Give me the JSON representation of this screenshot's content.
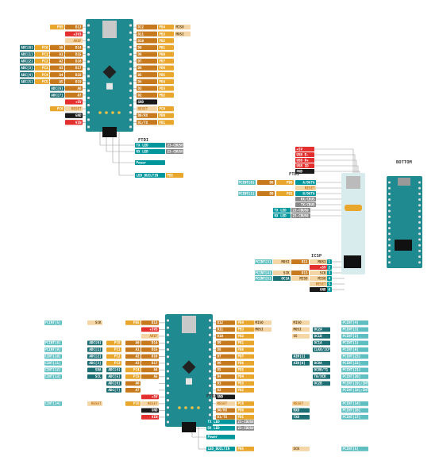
{
  "colors": {
    "teal": "#00979c",
    "dark_teal": "#1e6f74",
    "light_teal": "#5fbfc1",
    "orange": "#e8a72c",
    "dark_orange": "#c67a1d",
    "peach": "#f4d5a6",
    "red": "#e3302e",
    "black": "#1a1a1a",
    "gray": "#888888",
    "board": "#1f8a8f"
  },
  "legend": {
    "ftdi": "FTDI",
    "icsp": "ICSP",
    "bottom": "BOTTOM"
  },
  "top": {
    "left_rows": [
      [
        "D13",
        "PB5"
      ],
      [
        "+3V3"
      ],
      [
        "AREF"
      ],
      [
        "D14",
        "A0",
        "PC0",
        "ADC[0]"
      ],
      [
        "D15",
        "A1",
        "PC1",
        "ADC[1]"
      ],
      [
        "D16",
        "A2",
        "PC2",
        "ADC[2]"
      ],
      [
        "D17",
        "A3",
        "PC3",
        "ADC[3]"
      ],
      [
        "D18",
        "A4",
        "PC4",
        "ADC[4]"
      ],
      [
        "D19",
        "A5",
        "PC5",
        "ADC[5]"
      ],
      [
        "A6",
        "ADC[6]"
      ],
      [
        "A7",
        "ADC[7]"
      ],
      [
        "+5V"
      ],
      [
        "RESET",
        "PC6"
      ],
      [
        "GND"
      ],
      [
        "VIN"
      ]
    ],
    "right_rows": [
      [
        "D12",
        "PB4",
        "MISO"
      ],
      [
        "D11",
        "PB3",
        "MOSI"
      ],
      [
        "D10",
        "PB2"
      ],
      [
        "D9",
        "PB1"
      ],
      [
        "D8",
        "PB0"
      ],
      [
        "D7",
        "PD7"
      ],
      [
        "D6",
        "PD6"
      ],
      [
        "D5",
        "PD5"
      ],
      [
        "D4",
        "PD4"
      ],
      [
        "D3",
        "PD3"
      ],
      [
        "D2",
        "PD2"
      ],
      [
        "GND"
      ],
      [
        "RESET",
        "PC6"
      ],
      [
        "D0/RX",
        "PD0"
      ],
      [
        "D1/TX",
        "PD1"
      ]
    ],
    "leds": [
      [
        "TX LED",
        "23-CBUS0"
      ],
      [
        "RX LED",
        "23-CBUS0"
      ],
      [
        "Power"
      ],
      [
        "LED_BUILTIN",
        "PB5"
      ]
    ]
  },
  "ftdi_header": [
    "+5V",
    "USB D-",
    "USB D+",
    "USB ID",
    "GND"
  ],
  "middle": {
    "rows": [
      [
        "PCINT[0]",
        "D8",
        "PB0",
        "A/DATA"
      ],
      [
        "",
        "",
        "",
        "RESET"
      ],
      [
        "PCINT[1]",
        "D9",
        "PB1",
        "B/DATA"
      ],
      [
        "",
        "",
        "",
        "RX/CBUS"
      ],
      [
        "",
        "",
        "",
        "TX/CBUS"
      ]
    ],
    "leds": [
      [
        "TX LED",
        "23-CBUS0"
      ],
      [
        "RX LED",
        "23-CBUS0"
      ]
    ],
    "icsp": [
      [
        "PCINT[3]",
        "MOSI",
        "D11",
        "MOSI"
      ],
      [
        "",
        "",
        "",
        "+5V"
      ],
      [
        "PCINT[4]",
        "SCK",
        "D13",
        "SCK"
      ],
      [
        "PCINT[5]",
        "OC1A",
        "MISO",
        "MISO"
      ],
      [
        "",
        "",
        "",
        "RESET"
      ],
      [
        "",
        "",
        "",
        "GND"
      ]
    ]
  },
  "full": {
    "left_rows": [
      [
        "PCINT[5]",
        "SCK",
        "",
        "PB5",
        "D13"
      ],
      [
        "",
        "",
        "",
        "",
        "+3V3"
      ],
      [
        "",
        "",
        "",
        "",
        "AREF"
      ],
      [
        "PCINT[8]",
        "ADC[0]",
        "PC0",
        "A0",
        "D14"
      ],
      [
        "PCINT[9]",
        "ADC[1]",
        "PC1",
        "A1",
        "D15"
      ],
      [
        "PCINT[10]",
        "ADC[2]",
        "PC2",
        "A2",
        "D16"
      ],
      [
        "PCINT[11]",
        "ADC[3]",
        "PC3",
        "A3",
        "D17"
      ],
      [
        "PCINT[12]",
        "SDA",
        "ADC[4]",
        "PC4",
        "A4"
      ],
      [
        "PCINT[13]",
        "SCL",
        "ADC[5]",
        "PC5",
        "A5"
      ],
      [
        "",
        "",
        "ADC[6]",
        "A6",
        ""
      ],
      [
        "",
        "",
        "ADC[7]",
        "A7",
        ""
      ],
      [
        "",
        "",
        "",
        "",
        "+5V"
      ],
      [
        "PCINT[14]",
        "RESET",
        "",
        "PC6",
        "RESET"
      ],
      [
        "",
        "",
        "",
        "",
        "GND"
      ],
      [
        "",
        "",
        "",
        "",
        "VIN"
      ]
    ],
    "right_rows": [
      [
        "D12",
        "PB4",
        "MISO",
        "MISO",
        "",
        "PCINT[4]"
      ],
      [
        "D11",
        "PB3",
        "MOSI",
        "MOSI",
        "OC2A",
        "PCINT[3]"
      ],
      [
        "D10",
        "PB2",
        "",
        "SS",
        "OC1B",
        "PCINT[2]"
      ],
      [
        "D9",
        "PB1",
        "",
        "",
        "OC1A",
        "PCINT[1]"
      ],
      [
        "D8",
        "PB0",
        "",
        "",
        "CLKO/ICP1",
        "PCINT[0]"
      ],
      [
        "D7",
        "PD7",
        "",
        "AIN[1]",
        "",
        "PCINT[23]"
      ],
      [
        "D6",
        "PD6",
        "",
        "AIN[0]",
        "OC0A",
        "PCINT[22]"
      ],
      [
        "D5",
        "PD5",
        "",
        "",
        "OC0B/T1",
        "PCINT[21]"
      ],
      [
        "D4",
        "PD4",
        "",
        "",
        "T0/XCK",
        "PCINT[20]"
      ],
      [
        "D3",
        "PD3",
        "",
        "",
        "OC2B",
        "PCINT[19]/INT[1]"
      ],
      [
        "D2",
        "PD2",
        "",
        "",
        "",
        "PCINT[18]/INT[0]"
      ],
      [
        "GND",
        "",
        "",
        "",
        "",
        ""
      ],
      [
        "RESET",
        "PC6",
        "",
        "RESET",
        "",
        "PCINT[14]"
      ],
      [
        "D0/RX",
        "PD0",
        "",
        "RXD",
        "",
        "PCINT[16]"
      ],
      [
        "D1/TX",
        "PD1",
        "",
        "TXD",
        "",
        "PCINT[17]"
      ]
    ],
    "leds": [
      [
        "TX LED",
        "23-CBUS0"
      ],
      [
        "RX LED",
        "23-CBUS0"
      ],
      [
        "Power"
      ],
      [
        "LED_BUILTIN",
        "PB5",
        "SCK",
        "PCINT[5]"
      ]
    ]
  }
}
